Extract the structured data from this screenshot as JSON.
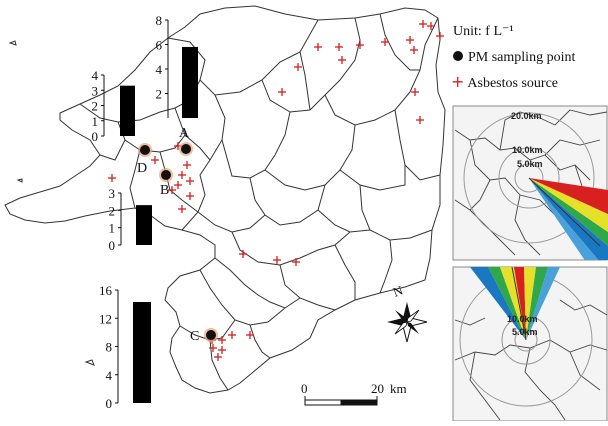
{
  "legend": {
    "unit": "Unit: f L⁻¹",
    "pm_point": "PM sampling point",
    "asbestos_source": "Asbestos source"
  },
  "sampling_points": [
    "A",
    "B",
    "C",
    "D"
  ],
  "north_label": "N",
  "scale_bar": {
    "start": "0",
    "end": "20",
    "unit": "km"
  },
  "inset_rings": [
    "20.0km",
    "10.0km",
    "5.0km"
  ],
  "colors": {
    "bar": "#000000",
    "source_marker": "#d61f1f",
    "boundary": "#333333",
    "sampling_fill": "#111111",
    "sampling_halo": "#f0a070"
  },
  "chart_data": [
    {
      "type": "bar",
      "site": "A",
      "values": [
        5.8
      ],
      "ylim": [
        0,
        8
      ],
      "ticks": [
        2,
        4,
        6,
        8
      ],
      "xlabel": "",
      "ylabel": ""
    },
    {
      "type": "bar",
      "site": "D",
      "values": [
        3.3
      ],
      "ylim": [
        0,
        4
      ],
      "ticks": [
        0,
        1,
        2,
        3,
        4
      ],
      "xlabel": "",
      "ylabel": ""
    },
    {
      "type": "bar",
      "site": "B",
      "values": [
        2.3
      ],
      "ylim": [
        0,
        3
      ],
      "ticks": [
        0,
        1,
        2,
        3
      ],
      "xlabel": "",
      "ylabel": ""
    },
    {
      "type": "bar",
      "site": "C",
      "values": [
        14.3
      ],
      "ylim": [
        0,
        16
      ],
      "ticks": [
        0,
        4,
        8,
        12,
        16
      ],
      "xlabel": "",
      "ylabel": ""
    }
  ]
}
